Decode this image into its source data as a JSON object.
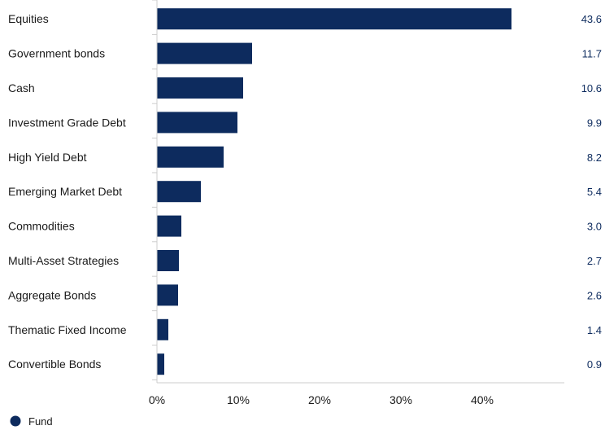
{
  "chart_data": {
    "type": "bar",
    "orientation": "horizontal",
    "categories": [
      "Equities",
      "Government bonds",
      "Cash",
      "Investment Grade Debt",
      "High Yield Debt",
      "Emerging Market Debt",
      "Commodities",
      "Multi-Asset Strategies",
      "Aggregate Bonds",
      "Thematic Fixed Income",
      "Convertible Bonds"
    ],
    "series": [
      {
        "name": "Fund",
        "values": [
          43.6,
          11.7,
          10.6,
          9.9,
          8.2,
          5.4,
          3.0,
          2.7,
          2.6,
          1.4,
          0.9
        ],
        "value_labels": [
          "43.6",
          "11.7",
          "10.6",
          "9.9",
          "8.2",
          "5.4",
          "3.0",
          "2.7",
          "2.6",
          "1.4",
          "0.9"
        ],
        "color": "#0d2b5e"
      }
    ],
    "x_ticks": [
      0,
      10,
      20,
      30,
      40
    ],
    "x_tick_labels": [
      "0%",
      "10%",
      "20%",
      "30%",
      "40%"
    ],
    "xlim": [
      0,
      50
    ],
    "grid": false,
    "legend_position": "bottom-left",
    "axis_color": "#cccccc"
  }
}
